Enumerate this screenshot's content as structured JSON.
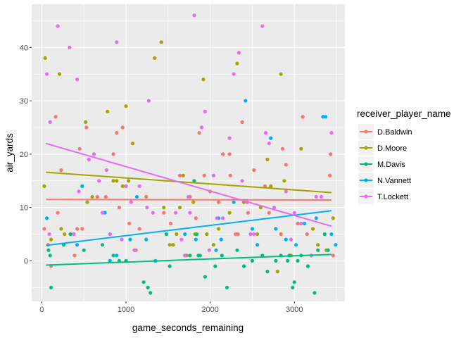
{
  "chart_data": {
    "type": "scatter",
    "xlabel": "game_seconds_remaining",
    "ylabel": "air_yards",
    "xlim": [
      -120,
      3600
    ],
    "ylim": [
      -7.6,
      48.1
    ],
    "x_ticks": [
      0,
      1000,
      2000,
      3000
    ],
    "y_ticks": [
      0,
      10,
      20,
      30,
      40
    ],
    "grid": true,
    "legend_title": "receiver_player_name",
    "legend_position": "right",
    "series": [
      {
        "name": "D.Baldwin",
        "color": "#F8766D",
        "trend": [
          [
            50,
            11.5
          ],
          [
            3440,
            11.4
          ]
        ],
        "points": [
          [
            30,
            6
          ],
          [
            75,
            3
          ],
          [
            110,
            -1
          ],
          [
            165,
            27
          ],
          [
            190,
            9
          ],
          [
            230,
            17
          ],
          [
            340,
            5
          ],
          [
            390,
            1
          ],
          [
            420,
            6
          ],
          [
            450,
            21
          ],
          [
            480,
            6
          ],
          [
            530,
            25
          ],
          [
            660,
            12
          ],
          [
            760,
            12
          ],
          [
            850,
            20
          ],
          [
            890,
            24
          ],
          [
            920,
            10
          ],
          [
            960,
            25
          ],
          [
            1000,
            14
          ],
          [
            1040,
            7
          ],
          [
            1120,
            2
          ],
          [
            1160,
            6
          ],
          [
            1240,
            12
          ],
          [
            1450,
            9
          ],
          [
            1530,
            7
          ],
          [
            1640,
            16
          ],
          [
            1760,
            12
          ],
          [
            1830,
            8
          ],
          [
            1870,
            24
          ],
          [
            1930,
            16
          ],
          [
            2000,
            13
          ],
          [
            2100,
            11
          ],
          [
            2150,
            20
          ],
          [
            2230,
            20
          ],
          [
            2240,
            16
          ],
          [
            2300,
            5
          ],
          [
            2330,
            5
          ],
          [
            2380,
            26
          ],
          [
            2450,
            9
          ],
          [
            2520,
            17
          ],
          [
            2650,
            14
          ],
          [
            2700,
            9
          ],
          [
            2840,
            5
          ],
          [
            2860,
            21
          ],
          [
            2900,
            18
          ],
          [
            3040,
            7
          ],
          [
            3100,
            27
          ],
          [
            3150,
            5
          ],
          [
            3420,
            16
          ],
          [
            3430,
            20
          ],
          [
            3460,
            1
          ]
        ]
      },
      {
        "name": "D.Moore",
        "color": "#A3A500",
        "trend": [
          [
            50,
            16.6
          ],
          [
            3440,
            12.8
          ]
        ],
        "points": [
          [
            30,
            14
          ],
          [
            40,
            38
          ],
          [
            110,
            4
          ],
          [
            210,
            35
          ],
          [
            230,
            6
          ],
          [
            270,
            5
          ],
          [
            380,
            5
          ],
          [
            520,
            26
          ],
          [
            540,
            11
          ],
          [
            600,
            12
          ],
          [
            780,
            28
          ],
          [
            850,
            15
          ],
          [
            890,
            15
          ],
          [
            960,
            14
          ],
          [
            1000,
            29
          ],
          [
            1030,
            15
          ],
          [
            1080,
            22
          ],
          [
            1340,
            38
          ],
          [
            1420,
            41
          ],
          [
            1450,
            10
          ],
          [
            1520,
            3
          ],
          [
            1560,
            3
          ],
          [
            1600,
            5
          ],
          [
            1640,
            10
          ],
          [
            1680,
            16
          ],
          [
            1720,
            1
          ],
          [
            1800,
            11
          ],
          [
            1820,
            5
          ],
          [
            1920,
            34
          ],
          [
            1960,
            5
          ],
          [
            2040,
            3
          ],
          [
            2100,
            6
          ],
          [
            2230,
            9
          ],
          [
            2320,
            37
          ],
          [
            2400,
            11
          ],
          [
            2560,
            5
          ],
          [
            2600,
            10
          ],
          [
            2680,
            19
          ],
          [
            2720,
            14
          ],
          [
            2800,
            -2
          ],
          [
            2840,
            35
          ],
          [
            2880,
            15
          ],
          [
            2960,
            1
          ],
          [
            3080,
            21
          ],
          [
            3220,
            6
          ],
          [
            3280,
            3
          ],
          [
            3380,
            2
          ],
          [
            3460,
            8
          ]
        ]
      },
      {
        "name": "M.Davis",
        "color": "#00BF7D",
        "trend": [
          [
            50,
            -0.8
          ],
          [
            3440,
            1.2
          ]
        ],
        "points": [
          [
            80,
            2
          ],
          [
            100,
            1
          ],
          [
            110,
            -5
          ],
          [
            260,
            3
          ],
          [
            340,
            5
          ],
          [
            500,
            2
          ],
          [
            720,
            3
          ],
          [
            850,
            1
          ],
          [
            920,
            0
          ],
          [
            1000,
            0
          ],
          [
            1210,
            -4
          ],
          [
            1260,
            -5
          ],
          [
            1290,
            -6
          ],
          [
            1480,
            5
          ],
          [
            1520,
            -1
          ],
          [
            1700,
            1
          ],
          [
            1760,
            1
          ],
          [
            1810,
            15
          ],
          [
            1840,
            5
          ],
          [
            1860,
            1
          ],
          [
            1880,
            1
          ],
          [
            1940,
            -3
          ],
          [
            2060,
            -1
          ],
          [
            2140,
            1
          ],
          [
            2200,
            -5
          ],
          [
            2320,
            2
          ],
          [
            2400,
            -1
          ],
          [
            2500,
            0
          ],
          [
            2620,
            1
          ],
          [
            2680,
            -2
          ],
          [
            2780,
            0
          ],
          [
            2840,
            1
          ],
          [
            2920,
            0
          ],
          [
            2940,
            1
          ],
          [
            2980,
            -5
          ],
          [
            3000,
            -4
          ],
          [
            3040,
            0
          ],
          [
            3080,
            1
          ],
          [
            3160,
            -1
          ],
          [
            3200,
            1
          ],
          [
            3240,
            -6
          ],
          [
            3280,
            2
          ],
          [
            3360,
            5
          ],
          [
            3400,
            2
          ]
        ]
      },
      {
        "name": "N.Vannett",
        "color": "#00B0F6",
        "trend": [
          [
            50,
            2.9
          ],
          [
            3440,
            9.4
          ]
        ],
        "points": [
          [
            60,
            8
          ],
          [
            420,
            3
          ],
          [
            480,
            14
          ],
          [
            750,
            9
          ],
          [
            810,
            0
          ],
          [
            890,
            1
          ],
          [
            1050,
            4
          ],
          [
            1130,
            12
          ],
          [
            1240,
            4
          ],
          [
            1350,
            0
          ],
          [
            1700,
            5
          ],
          [
            1830,
            4
          ],
          [
            2070,
            2
          ],
          [
            2100,
            8
          ],
          [
            2130,
            4
          ],
          [
            2280,
            11
          ],
          [
            2420,
            30
          ],
          [
            2500,
            6
          ],
          [
            2560,
            3
          ],
          [
            2720,
            23
          ],
          [
            2780,
            6
          ],
          [
            2900,
            4
          ],
          [
            3020,
            3
          ],
          [
            3120,
            7
          ],
          [
            3260,
            8
          ],
          [
            3340,
            27
          ],
          [
            3370,
            27
          ],
          [
            3440,
            5
          ],
          [
            3490,
            3
          ]
        ]
      },
      {
        "name": "T.Lockett",
        "color": "#E76BF3",
        "trend": [
          [
            50,
            22
          ],
          [
            3440,
            6.5
          ]
        ],
        "points": [
          [
            60,
            35
          ],
          [
            90,
            5
          ],
          [
            100,
            26
          ],
          [
            190,
            44
          ],
          [
            330,
            40
          ],
          [
            380,
            5
          ],
          [
            420,
            34
          ],
          [
            440,
            13
          ],
          [
            560,
            19
          ],
          [
            620,
            20
          ],
          [
            680,
            15
          ],
          [
            720,
            9
          ],
          [
            770,
            17
          ],
          [
            810,
            5
          ],
          [
            890,
            41
          ],
          [
            950,
            4
          ],
          [
            1000,
            14
          ],
          [
            1060,
            11
          ],
          [
            1100,
            2
          ],
          [
            1160,
            14
          ],
          [
            1250,
            10
          ],
          [
            1270,
            30
          ],
          [
            1320,
            9
          ],
          [
            1590,
            9
          ],
          [
            1660,
            4
          ],
          [
            1700,
            1
          ],
          [
            1740,
            12
          ],
          [
            1760,
            9
          ],
          [
            1810,
            46
          ],
          [
            1900,
            25
          ],
          [
            1940,
            28
          ],
          [
            1990,
            2
          ],
          [
            2040,
            16
          ],
          [
            2080,
            8
          ],
          [
            2150,
            8
          ],
          [
            2230,
            23
          ],
          [
            2280,
            35
          ],
          [
            2340,
            39
          ],
          [
            2380,
            15
          ],
          [
            2440,
            11
          ],
          [
            2480,
            5
          ],
          [
            2520,
            5
          ],
          [
            2620,
            44
          ],
          [
            2660,
            24
          ],
          [
            2700,
            22
          ],
          [
            2760,
            10
          ],
          [
            2900,
            13
          ],
          [
            2960,
            4
          ],
          [
            3000,
            9
          ],
          [
            3080,
            7
          ],
          [
            3200,
            1
          ],
          [
            3260,
            12
          ],
          [
            3320,
            12
          ],
          [
            3440,
            24
          ]
        ]
      }
    ]
  }
}
